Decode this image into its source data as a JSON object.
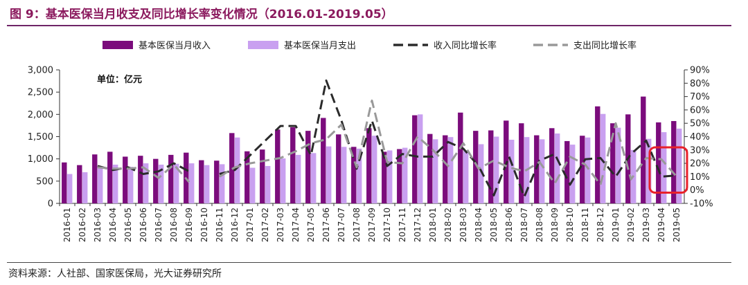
{
  "page": {
    "title": "图 9：基本医保当月收支及同比增长率变化情况（2016.01-2019.05）",
    "source": "资料来源：人社部、国家医保局，光大证券研究所"
  },
  "chart_data": {
    "type": "bar",
    "unit_label": "单位：亿元",
    "categories": [
      "2016-01",
      "2016-02",
      "2016-03",
      "2016-04",
      "2016-05",
      "2016-06",
      "2016-07",
      "2016-08",
      "2016-09",
      "2016-10",
      "2016-11",
      "2016-12",
      "2017-01",
      "2017-02",
      "2017-03",
      "2017-04",
      "2017-05",
      "2017-06",
      "2017-07",
      "2017-08",
      "2017-09",
      "2017-10",
      "2017-11",
      "2017-12",
      "2018-01",
      "2018-02",
      "2018-03",
      "2018-04",
      "2018-05",
      "2018-06",
      "2018-07",
      "2018-08",
      "2018-09",
      "2018-10",
      "2018-11",
      "2018-12",
      "2019-01",
      "2019-02",
      "2019-03",
      "2019-04",
      "2019-05"
    ],
    "series": [
      {
        "name": "基本医保当月收入",
        "kind": "bar",
        "axis": "left",
        "color": "#7B0C7C",
        "values": [
          920,
          860,
          1100,
          1160,
          1050,
          1070,
          1000,
          1090,
          1140,
          970,
          960,
          1580,
          1170,
          1210,
          1660,
          1710,
          1630,
          1920,
          1550,
          1270,
          1690,
          1160,
          1220,
          1980,
          1560,
          1530,
          2040,
          1630,
          1640,
          1860,
          1800,
          1530,
          1690,
          1400,
          1520,
          2180,
          1800,
          2000,
          2400,
          1820,
          1850
        ]
      },
      {
        "name": "基本医保当月支出",
        "kind": "bar",
        "axis": "left",
        "color": "#C9A0F0",
        "values": [
          660,
          700,
          820,
          870,
          820,
          900,
          870,
          890,
          900,
          860,
          880,
          1480,
          800,
          840,
          1010,
          1090,
          1130,
          1280,
          1270,
          1230,
          1520,
          1190,
          1250,
          2000,
          1440,
          1490,
          1180,
          1330,
          1500,
          1430,
          1490,
          1440,
          1570,
          1320,
          1480,
          2010,
          1700,
          1200,
          1450,
          1600,
          1680
        ]
      },
      {
        "name": "收入同比增长率",
        "kind": "line",
        "axis": "right",
        "color": "#2B2B2B",
        "dash": "dashed",
        "values": [
          null,
          null,
          18,
          15,
          17,
          12,
          14,
          20,
          14,
          null,
          12,
          15,
          26,
          37,
          48,
          48,
          26,
          82,
          52,
          16,
          52,
          18,
          27,
          25,
          25,
          36,
          31,
          18,
          -4,
          25,
          -5,
          22,
          27,
          4,
          23,
          24,
          10,
          27,
          37,
          10,
          11
        ]
      },
      {
        "name": "支出同比增长率",
        "kind": "line",
        "axis": "right",
        "color": "#999999",
        "dash": "dashed",
        "values": [
          null,
          null,
          17,
          16,
          16,
          17,
          9,
          19,
          6,
          null,
          10,
          17,
          20,
          22,
          24,
          29,
          35,
          38,
          49,
          17,
          67,
          21,
          20,
          40,
          30,
          18,
          35,
          16,
          22,
          17,
          14,
          21,
          5,
          25,
          19,
          4,
          50,
          8,
          24,
          23,
          10
        ]
      }
    ],
    "ylim_left": [
      0,
      3000
    ],
    "yticks_left": [
      "0",
      "500",
      "1,000",
      "1,500",
      "2,000",
      "2,500",
      "3,000"
    ],
    "ylim_right": [
      -10,
      90
    ],
    "yticks_right": [
      "-10%",
      "0%",
      "10%",
      "20%",
      "30%",
      "40%",
      "50%",
      "60%",
      "70%",
      "80%",
      "90%"
    ],
    "legend_position": "top",
    "highlight": {
      "categories": [
        "2019-04",
        "2019-05"
      ],
      "color": "#E8202A"
    },
    "grid": false
  }
}
